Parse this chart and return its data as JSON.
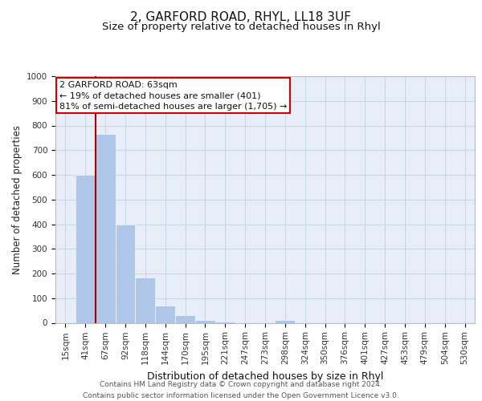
{
  "title1": "2, GARFORD ROAD, RHYL, LL18 3UF",
  "title2": "Size of property relative to detached houses in Rhyl",
  "xlabel": "Distribution of detached houses by size in Rhyl",
  "ylabel": "Number of detached properties",
  "categories": [
    "15sqm",
    "41sqm",
    "67sqm",
    "92sqm",
    "118sqm",
    "144sqm",
    "170sqm",
    "195sqm",
    "221sqm",
    "247sqm",
    "273sqm",
    "298sqm",
    "324sqm",
    "350sqm",
    "376sqm",
    "401sqm",
    "427sqm",
    "453sqm",
    "479sqm",
    "504sqm",
    "530sqm"
  ],
  "values": [
    3,
    600,
    765,
    400,
    185,
    70,
    30,
    10,
    5,
    3,
    2,
    10,
    0,
    0,
    0,
    0,
    0,
    0,
    0,
    0,
    0
  ],
  "bar_color": "#aec6e8",
  "grid_color": "#c8d4e8",
  "background_color": "#e8eef8",
  "ylim": [
    0,
    1000
  ],
  "yticks": [
    0,
    100,
    200,
    300,
    400,
    500,
    600,
    700,
    800,
    900,
    1000
  ],
  "property_line_color": "#aa0000",
  "annotation_text": "2 GARFORD ROAD: 63sqm\n← 19% of detached houses are smaller (401)\n81% of semi-detached houses are larger (1,705) →",
  "annotation_box_color": "#ffffff",
  "annotation_border_color": "#cc0000",
  "footer_text": "Contains HM Land Registry data © Crown copyright and database right 2024.\nContains public sector information licensed under the Open Government Licence v3.0.",
  "title1_fontsize": 11,
  "title2_fontsize": 9.5,
  "xlabel_fontsize": 9,
  "ylabel_fontsize": 8.5,
  "tick_fontsize": 7.5,
  "annotation_fontsize": 8,
  "footer_fontsize": 6.5
}
